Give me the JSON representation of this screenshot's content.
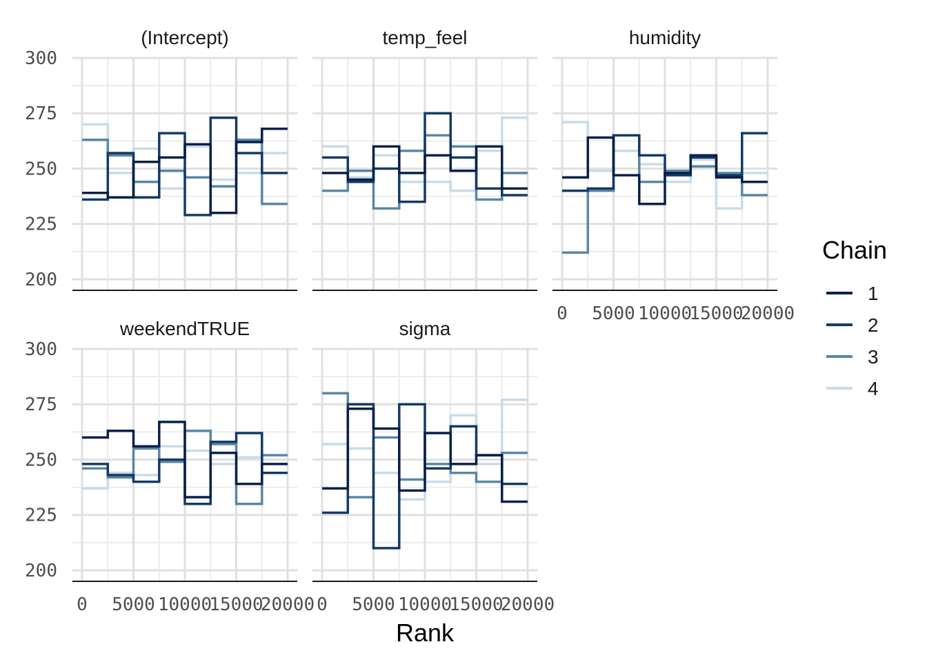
{
  "chart_data": {
    "type": "line",
    "subtype": "rank histogram (step), faceted",
    "xlabel": "Rank",
    "ylabel": "",
    "ylim": [
      195,
      300
    ],
    "y_ticks": [
      200,
      225,
      250,
      275,
      300
    ],
    "y_tick_labels": [
      "200",
      "225",
      "250",
      "275",
      "300"
    ],
    "xlim": [
      0,
      20000
    ],
    "x_ticks": [
      0,
      5000,
      10000,
      15000,
      20000
    ],
    "x_tick_labels": [
      "0",
      "5000",
      "10000",
      "15000",
      "20000"
    ],
    "bin_width": 2500,
    "bin_count": 8,
    "grid": true,
    "legend": {
      "title": "Chain",
      "position": "right",
      "entries": [
        {
          "label": "1",
          "color": "#08204a"
        },
        {
          "label": "2",
          "color": "#143a66"
        },
        {
          "label": "3",
          "color": "#5a87a5"
        },
        {
          "label": "4",
          "color": "#c8dbea"
        }
      ]
    },
    "panels": [
      {
        "title": "(Intercept)",
        "show_x_ticks": false,
        "series": [
          {
            "name": "1",
            "values": [
              239,
              237,
              253,
              255,
              261,
              230,
              262,
              268
            ]
          },
          {
            "name": "2",
            "values": [
              236,
              257,
              237,
              266,
              229,
              273,
              257,
              248
            ]
          },
          {
            "name": "3",
            "values": [
              263,
              256,
              244,
              249,
              246,
              242,
              263,
              234
            ]
          },
          {
            "name": "4",
            "values": [
              270,
              248,
              259,
              241,
              260,
              245,
              248,
              257
            ]
          }
        ]
      },
      {
        "title": "temp_feel",
        "show_x_ticks": false,
        "series": [
          {
            "name": "1",
            "values": [
              248,
              245,
              260,
              248,
              256,
              249,
              260,
              241
            ]
          },
          {
            "name": "2",
            "values": [
              255,
              244,
              250,
              235,
              275,
              255,
              241,
              238
            ]
          },
          {
            "name": "3",
            "values": [
              240,
              249,
              232,
              258,
              265,
              260,
              236,
              248
            ]
          },
          {
            "name": "4",
            "values": [
              260,
              246,
              256,
              244,
              244,
              240,
              258,
              273
            ]
          }
        ]
      },
      {
        "title": "humidity",
        "show_x_ticks": true,
        "series": [
          {
            "name": "1",
            "values": [
              246,
              264,
              247,
              234,
              248,
              256,
              246,
              244
            ]
          },
          {
            "name": "2",
            "values": [
              240,
              241,
              265,
              256,
              247,
              255,
              247,
              266
            ]
          },
          {
            "name": "3",
            "values": [
              212,
              240,
              265,
              244,
              249,
              251,
              248,
              238
            ]
          },
          {
            "name": "4",
            "values": [
              271,
              249,
              258,
              252,
              244,
              254,
              232,
              248
            ]
          }
        ]
      },
      {
        "title": "weekendTRUE",
        "show_x_ticks": true,
        "series": [
          {
            "name": "1",
            "values": [
              260,
              263,
              256,
              267,
              233,
              253,
              239,
              248
            ]
          },
          {
            "name": "2",
            "values": [
              248,
              243,
              240,
              250,
              230,
              258,
              262,
              244
            ]
          },
          {
            "name": "3",
            "values": [
              246,
              242,
              255,
              249,
              263,
              257,
              230,
              252
            ]
          },
          {
            "name": "4",
            "values": [
              237,
              244,
              243,
              256,
              254,
              248,
              251,
              252
            ]
          }
        ]
      },
      {
        "title": "sigma",
        "show_x_ticks": true,
        "series": [
          {
            "name": "1",
            "values": [
              237,
              273,
              264,
              236,
              262,
              248,
              252,
              231
            ]
          },
          {
            "name": "2",
            "values": [
              226,
              275,
              210,
              275,
              246,
              265,
              252,
              239
            ]
          },
          {
            "name": "3",
            "values": [
              280,
              233,
              260,
              241,
              248,
              244,
              240,
              253
            ]
          },
          {
            "name": "4",
            "values": [
              257,
              255,
              244,
              232,
              240,
              270,
              248,
              277
            ]
          }
        ]
      }
    ]
  }
}
